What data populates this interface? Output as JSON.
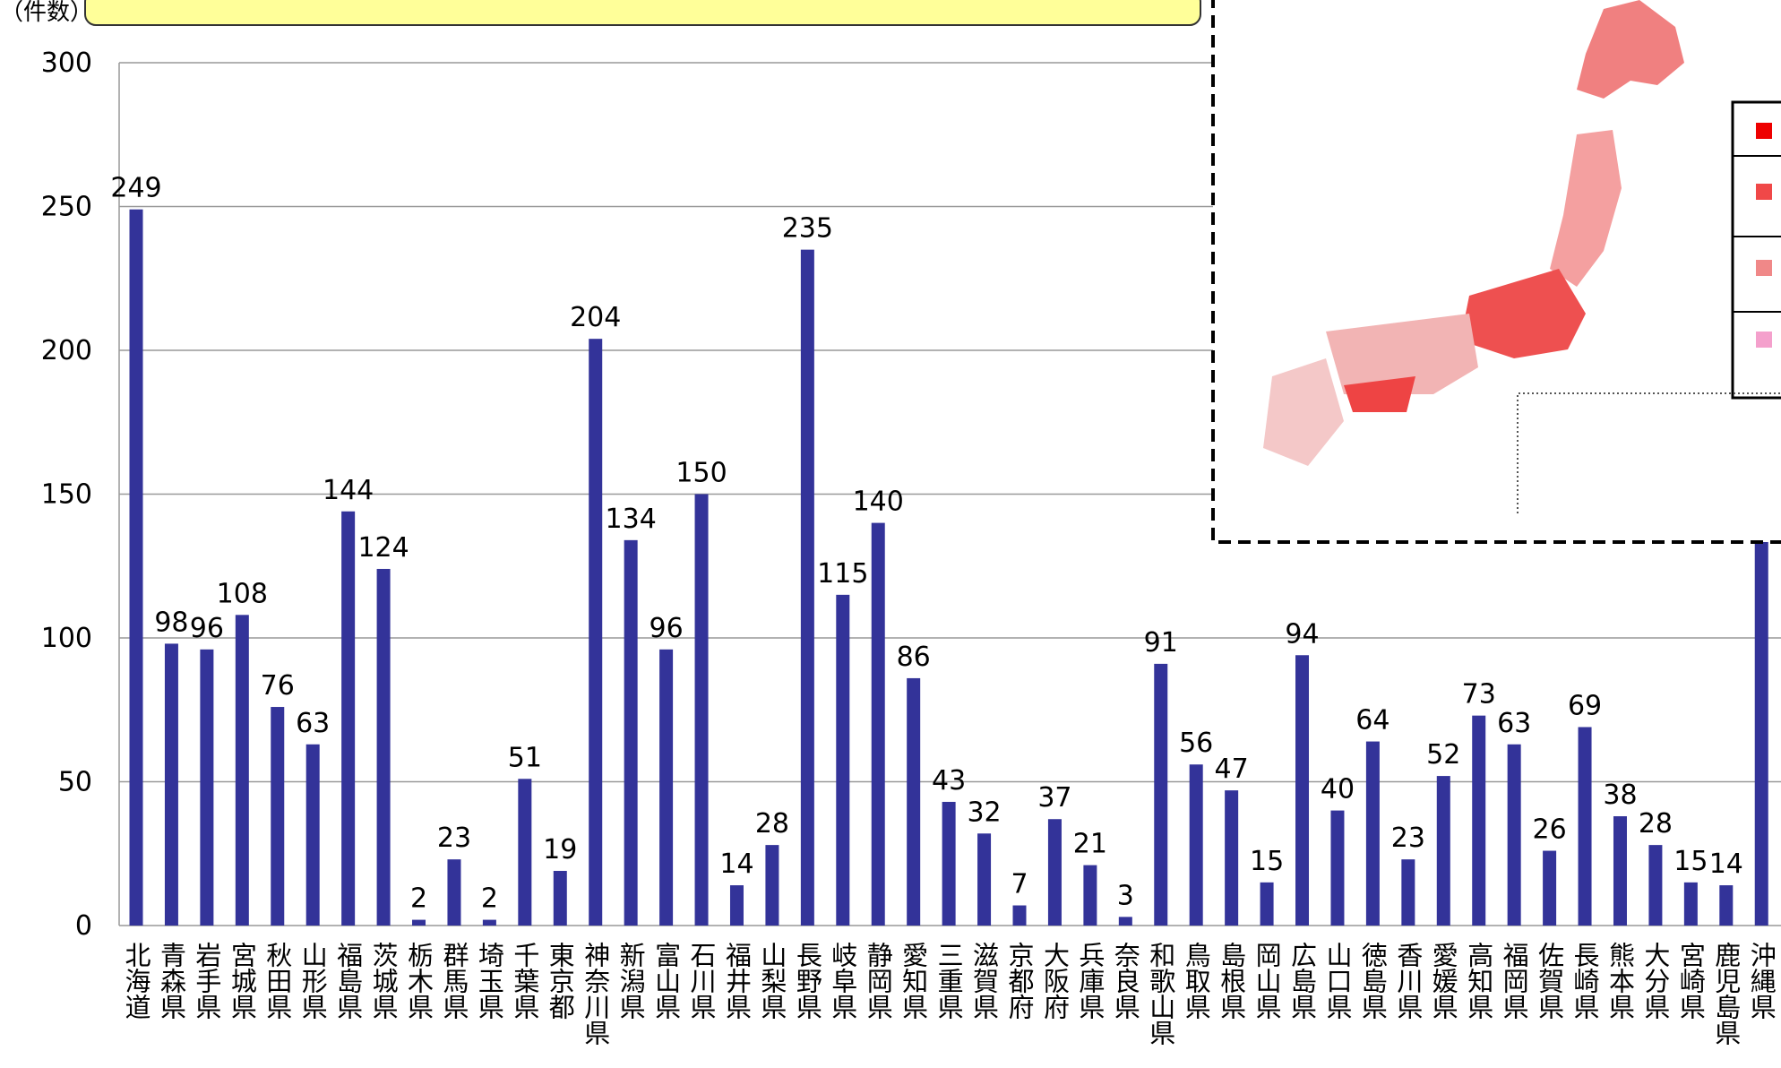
{
  "chart_data": {
    "type": "bar",
    "y_label": "（件数）",
    "categories": [
      "北海道",
      "青森県",
      "岩手県",
      "宮城県",
      "秋田県",
      "山形県",
      "福島県",
      "茨城県",
      "栃木県",
      "群馬県",
      "埼玉県",
      "千葉県",
      "東京都",
      "神奈川県",
      "新潟県",
      "富山県",
      "石川県",
      "福井県",
      "山梨県",
      "長野県",
      "岐阜県",
      "静岡県",
      "愛知県",
      "三重県",
      "滋賀県",
      "京都府",
      "大阪府",
      "兵庫県",
      "奈良県",
      "和歌山県",
      "鳥取県",
      "島根県",
      "岡山県",
      "広島県",
      "山口県",
      "徳島県",
      "香川県",
      "愛媛県",
      "高知県",
      "福岡県",
      "佐賀県",
      "長崎県",
      "熊本県",
      "大分県",
      "宮崎県",
      "鹿児島県",
      "沖縄県"
    ],
    "values": [
      249,
      98,
      96,
      108,
      76,
      63,
      144,
      124,
      2,
      23,
      2,
      51,
      19,
      204,
      134,
      96,
      150,
      14,
      28,
      235,
      115,
      140,
      86,
      43,
      32,
      7,
      37,
      21,
      3,
      91,
      56,
      47,
      15,
      94,
      40,
      64,
      23,
      52,
      73,
      63,
      26,
      69,
      38,
      28,
      15,
      14,
      141
    ],
    "color": "#333399",
    "ylim": [
      0,
      300
    ],
    "yticks": [
      0,
      50,
      100,
      150,
      200,
      250,
      300
    ],
    "grid": true
  }
}
